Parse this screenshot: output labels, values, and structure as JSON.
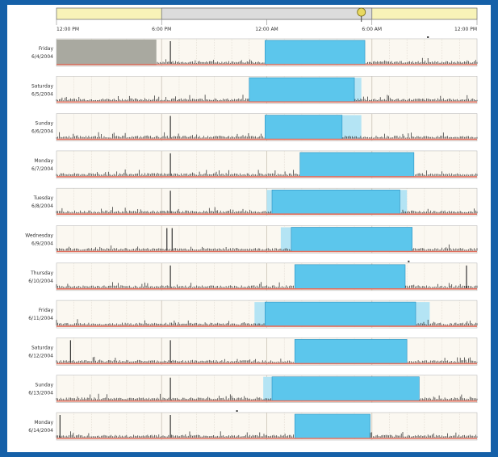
{
  "colors": {
    "background": "#1560a8",
    "panel": "#ffffff",
    "row_background": "#fbf8f1",
    "off_hours_shade": "#f2f2f2",
    "grid": "#cfc8bc",
    "sleep_block": "#5cc6ec",
    "sleep_partial": "#b4e4f4",
    "no_data": "#a9a9a0",
    "activity": "#222222",
    "baseline": "#e07060",
    "timeline_highlight": "#f8f3b8",
    "timeline_window": "#dcdcdc",
    "timeline_knob": "#e8d860"
  },
  "chart_data": {
    "type": "actogram",
    "x_unit": "hours from 12:00 PM",
    "x_range": [
      0,
      24
    ],
    "x_ticks": [
      {
        "label": "12:00 PM",
        "hour": 0
      },
      {
        "label": "6:00 PM",
        "hour": 6
      },
      {
        "label": "12:00 AM",
        "hour": 12
      },
      {
        "label": "6:00 AM",
        "hour": 18
      },
      {
        "label": "12:00 PM",
        "hour": 24
      }
    ],
    "timeline": {
      "window_start": 6,
      "window_end": 18,
      "knob_hour": 17.4
    },
    "rows": [
      {
        "day": "Friday",
        "date": "6/4/2004",
        "no_data": [
          [
            0,
            5.7
          ]
        ],
        "sleep": [
          [
            11.9,
            17.6
          ]
        ],
        "partial": [],
        "spikes": [
          6.5
        ],
        "dots": [
          21.2
        ]
      },
      {
        "day": "Saturday",
        "date": "6/5/2004",
        "no_data": [],
        "sleep": [
          [
            11.0,
            17.0
          ]
        ],
        "partial": [
          [
            17.0,
            17.4
          ]
        ],
        "spikes": [],
        "dots": []
      },
      {
        "day": "Sunday",
        "date": "6/6/2004",
        "no_data": [],
        "sleep": [
          [
            11.9,
            16.3
          ]
        ],
        "partial": [
          [
            16.3,
            17.4
          ]
        ],
        "spikes": [
          6.5
        ],
        "dots": []
      },
      {
        "day": "Monday",
        "date": "6/7/2004",
        "no_data": [],
        "sleep": [
          [
            13.9,
            20.4
          ]
        ],
        "partial": [],
        "spikes": [
          6.5
        ],
        "dots": []
      },
      {
        "day": "Tuesday",
        "date": "6/8/2004",
        "no_data": [],
        "sleep": [
          [
            12.3,
            19.6
          ]
        ],
        "partial": [
          [
            12.0,
            12.3
          ],
          [
            19.6,
            20.0
          ]
        ],
        "spikes": [
          6.5
        ],
        "dots": []
      },
      {
        "day": "Wednesday",
        "date": "6/9/2004",
        "no_data": [],
        "sleep": [
          [
            13.4,
            20.3
          ]
        ],
        "partial": [
          [
            12.8,
            13.4
          ]
        ],
        "spikes": [
          6.3,
          6.6
        ],
        "dots": []
      },
      {
        "day": "Thursday",
        "date": "6/10/2004",
        "no_data": [],
        "sleep": [
          [
            13.6,
            19.9
          ]
        ],
        "partial": [],
        "spikes": [
          6.5,
          23.4
        ],
        "dots": [
          20.1
        ]
      },
      {
        "day": "Friday",
        "date": "6/11/2004",
        "no_data": [],
        "sleep": [
          [
            11.9,
            20.5
          ]
        ],
        "partial": [
          [
            11.3,
            11.9
          ],
          [
            20.5,
            21.3
          ]
        ],
        "spikes": [],
        "dots": []
      },
      {
        "day": "Saturday",
        "date": "6/12/2004",
        "no_data": [],
        "sleep": [
          [
            13.6,
            20.0
          ]
        ],
        "partial": [],
        "spikes": [
          0.8,
          6.5
        ],
        "dots": []
      },
      {
        "day": "Sunday",
        "date": "6/13/2004",
        "no_data": [],
        "sleep": [
          [
            12.3,
            20.7
          ]
        ],
        "partial": [
          [
            11.8,
            12.3
          ]
        ],
        "spikes": [
          6.5
        ],
        "dots": []
      },
      {
        "day": "Monday",
        "date": "6/14/2004",
        "no_data": [],
        "sleep": [
          [
            13.6,
            17.9
          ]
        ],
        "partial": [],
        "spikes": [
          0.2,
          6.5
        ],
        "dots": [
          10.3
        ]
      }
    ]
  }
}
